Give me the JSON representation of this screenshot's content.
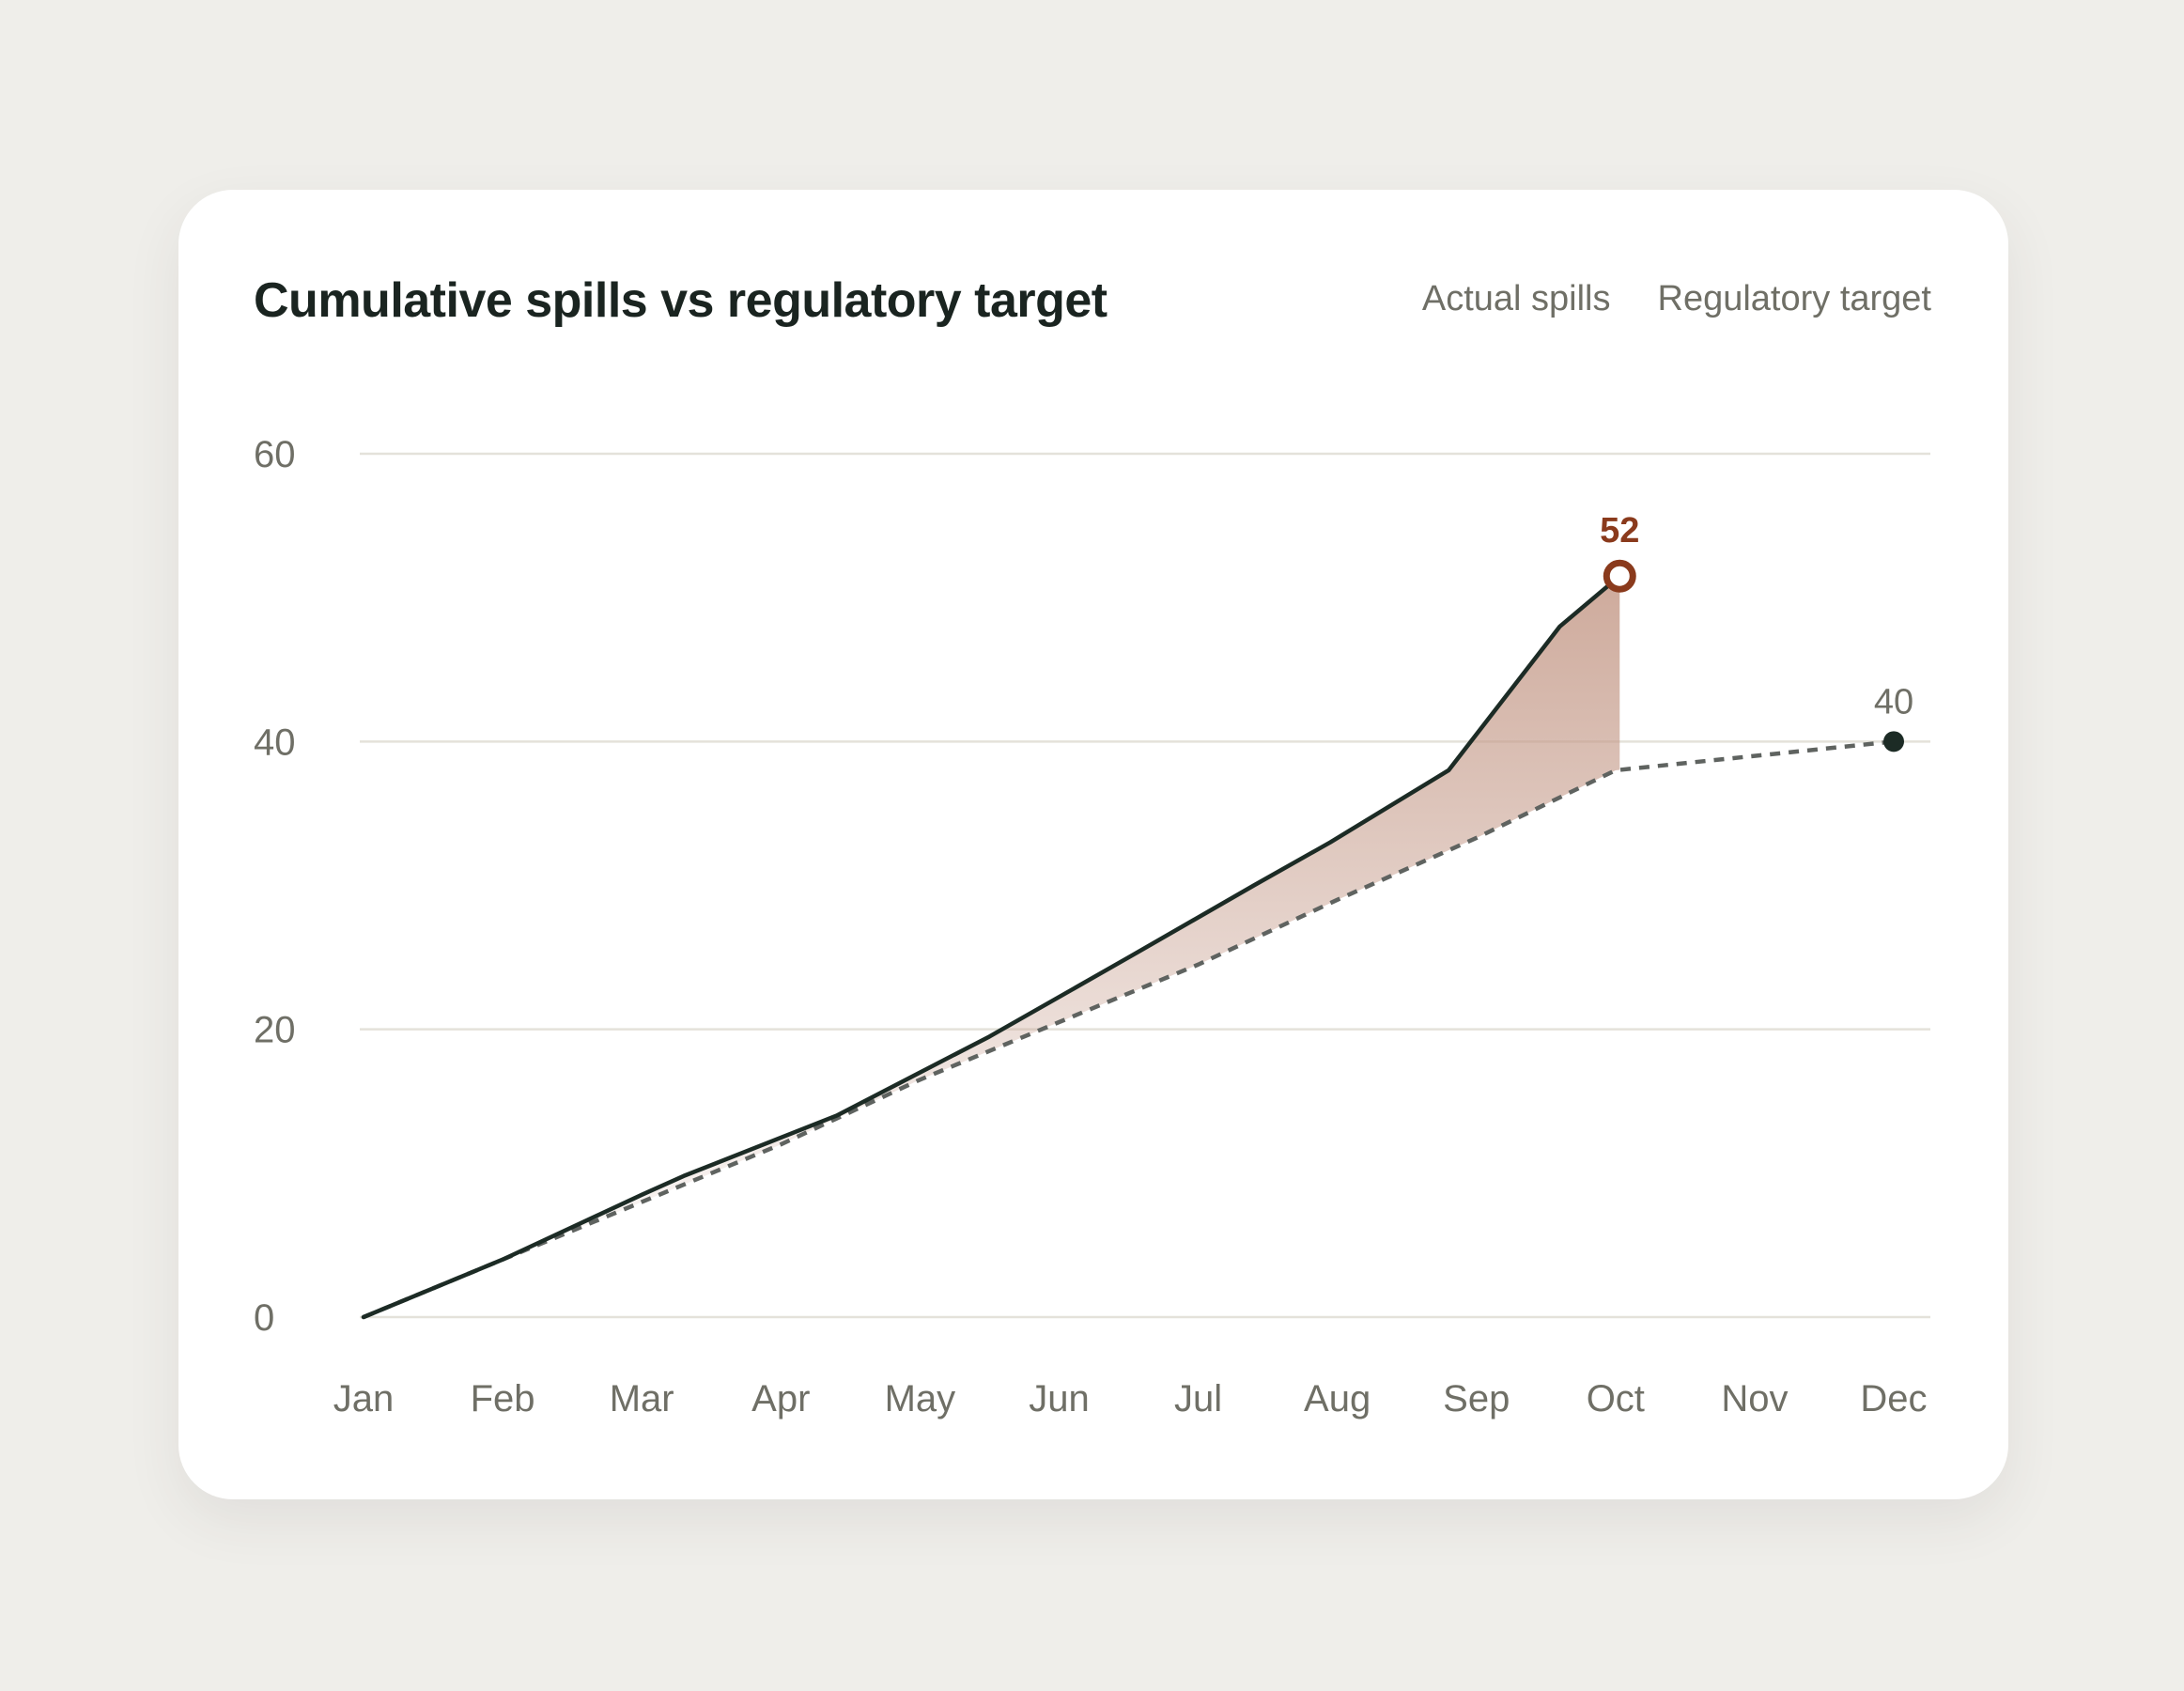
{
  "chart_data": {
    "type": "line",
    "title": "Cumulative spills vs regulatory target",
    "categories": [
      "Jan",
      "Feb",
      "Mar",
      "Apr",
      "May",
      "Jun",
      "Jul",
      "Aug",
      "Sep",
      "Oct",
      "Nov",
      "Dec"
    ],
    "yticks": [
      0,
      20,
      40,
      60
    ],
    "ylim": [
      0,
      60
    ],
    "grid": true,
    "legend_position": "top-right",
    "series": [
      {
        "name": "Actual spills",
        "style": "solid",
        "color": "#1c2b25",
        "x": [
          0,
          1,
          2,
          2.3,
          3.4,
          4.5,
          5.5,
          6.4,
          6.95,
          7.8,
          8.6,
          9.03
        ],
        "values": [
          0,
          4,
          8.5,
          9.8,
          14,
          19.5,
          25,
          30,
          33,
          38,
          48,
          51.5
        ]
      },
      {
        "name": "Regulatory target",
        "style": "dashed",
        "color": "#5f6360",
        "x": [
          0,
          1,
          2,
          3,
          4,
          5,
          6,
          7,
          8,
          9,
          10,
          11
        ],
        "values": [
          0,
          4,
          8,
          12,
          16.5,
          20.5,
          24.5,
          29,
          33.3,
          38,
          39,
          40
        ]
      }
    ],
    "annotations": [
      {
        "series": "Actual spills",
        "label": "52",
        "color": "#8a3a1c"
      },
      {
        "series": "Regulatory target",
        "label": "40",
        "color": "#6f6f66"
      }
    ],
    "gap_fill_color": "#c59b8a"
  }
}
